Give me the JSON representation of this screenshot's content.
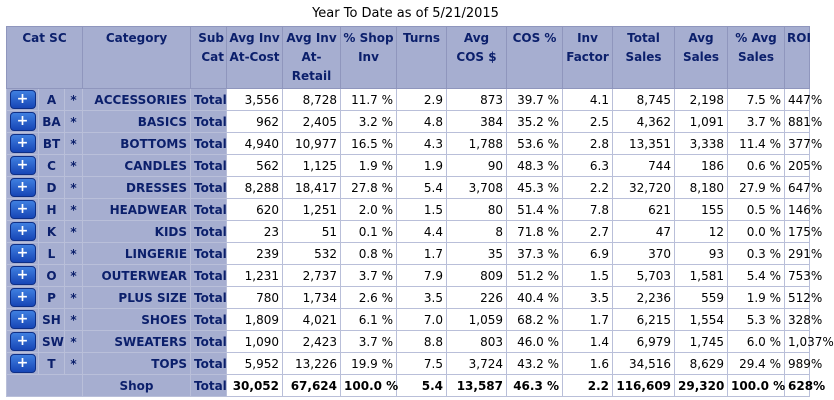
{
  "title": "Year To Date as of 5/21/2015",
  "headers": {
    "catsc": "Cat SC",
    "category": "Category",
    "subcat": "Sub Cat",
    "avginvcost": "Avg Inv At-Cost",
    "avginvretail": "Avg Inv At-Retail",
    "shopinv": "% Shop Inv",
    "turns": "Turns",
    "avgcos": "Avg COS $",
    "cospct": "COS %",
    "invfactor": "Inv Factor",
    "totalsales": "Total Sales",
    "avgsales": "Avg Sales",
    "pctavgsales": "% Avg Sales",
    "roi": "ROI"
  },
  "expand_label": "+",
  "rows": [
    {
      "cat": "A",
      "sc": "*",
      "category": "ACCESSORIES",
      "subcat": "Total",
      "avg_inv_cost": "3,556",
      "avg_inv_retail": "8,728",
      "shop_inv": "11.7 %",
      "turns": "2.9",
      "avg_cos": "873",
      "cos_pct": "39.7 %",
      "inv_factor": "4.1",
      "total_sales": "8,745",
      "avg_sales": "2,198",
      "pct_avg_sales": "7.5 %",
      "roi": "447%"
    },
    {
      "cat": "BA",
      "sc": "*",
      "category": "BASICS",
      "subcat": "Total",
      "avg_inv_cost": "962",
      "avg_inv_retail": "2,405",
      "shop_inv": "3.2 %",
      "turns": "4.8",
      "avg_cos": "384",
      "cos_pct": "35.2 %",
      "inv_factor": "2.5",
      "total_sales": "4,362",
      "avg_sales": "1,091",
      "pct_avg_sales": "3.7 %",
      "roi": "881%"
    },
    {
      "cat": "BT",
      "sc": "*",
      "category": "BOTTOMS",
      "subcat": "Total",
      "avg_inv_cost": "4,940",
      "avg_inv_retail": "10,977",
      "shop_inv": "16.5 %",
      "turns": "4.3",
      "avg_cos": "1,788",
      "cos_pct": "53.6 %",
      "inv_factor": "2.8",
      "total_sales": "13,351",
      "avg_sales": "3,338",
      "pct_avg_sales": "11.4 %",
      "roi": "377%"
    },
    {
      "cat": "C",
      "sc": "*",
      "category": "CANDLES",
      "subcat": "Total",
      "avg_inv_cost": "562",
      "avg_inv_retail": "1,125",
      "shop_inv": "1.9 %",
      "turns": "1.9",
      "avg_cos": "90",
      "cos_pct": "48.3 %",
      "inv_factor": "6.3",
      "total_sales": "744",
      "avg_sales": "186",
      "pct_avg_sales": "0.6 %",
      "roi": "205%"
    },
    {
      "cat": "D",
      "sc": "*",
      "category": "DRESSES",
      "subcat": "Total",
      "avg_inv_cost": "8,288",
      "avg_inv_retail": "18,417",
      "shop_inv": "27.8 %",
      "turns": "5.4",
      "avg_cos": "3,708",
      "cos_pct": "45.3 %",
      "inv_factor": "2.2",
      "total_sales": "32,720",
      "avg_sales": "8,180",
      "pct_avg_sales": "27.9 %",
      "roi": "647%"
    },
    {
      "cat": "H",
      "sc": "*",
      "category": "HEADWEAR",
      "subcat": "Total",
      "avg_inv_cost": "620",
      "avg_inv_retail": "1,251",
      "shop_inv": "2.0 %",
      "turns": "1.5",
      "avg_cos": "80",
      "cos_pct": "51.4 %",
      "inv_factor": "7.8",
      "total_sales": "621",
      "avg_sales": "155",
      "pct_avg_sales": "0.5 %",
      "roi": "146%"
    },
    {
      "cat": "K",
      "sc": "*",
      "category": "KIDS",
      "subcat": "Total",
      "avg_inv_cost": "23",
      "avg_inv_retail": "51",
      "shop_inv": "0.1 %",
      "turns": "4.4",
      "avg_cos": "8",
      "cos_pct": "71.8 %",
      "inv_factor": "2.7",
      "total_sales": "47",
      "avg_sales": "12",
      "pct_avg_sales": "0.0 %",
      "roi": "175%"
    },
    {
      "cat": "L",
      "sc": "*",
      "category": "LINGERIE",
      "subcat": "Total",
      "avg_inv_cost": "239",
      "avg_inv_retail": "532",
      "shop_inv": "0.8 %",
      "turns": "1.7",
      "avg_cos": "35",
      "cos_pct": "37.3 %",
      "inv_factor": "6.9",
      "total_sales": "370",
      "avg_sales": "93",
      "pct_avg_sales": "0.3 %",
      "roi": "291%"
    },
    {
      "cat": "O",
      "sc": "*",
      "category": "OUTERWEAR",
      "subcat": "Total",
      "avg_inv_cost": "1,231",
      "avg_inv_retail": "2,737",
      "shop_inv": "3.7 %",
      "turns": "7.9",
      "avg_cos": "809",
      "cos_pct": "51.2 %",
      "inv_factor": "1.5",
      "total_sales": "5,703",
      "avg_sales": "1,581",
      "pct_avg_sales": "5.4 %",
      "roi": "753%"
    },
    {
      "cat": "P",
      "sc": "*",
      "category": "PLUS SIZE",
      "subcat": "Total",
      "avg_inv_cost": "780",
      "avg_inv_retail": "1,734",
      "shop_inv": "2.6 %",
      "turns": "3.5",
      "avg_cos": "226",
      "cos_pct": "40.4 %",
      "inv_factor": "3.5",
      "total_sales": "2,236",
      "avg_sales": "559",
      "pct_avg_sales": "1.9 %",
      "roi": "512%"
    },
    {
      "cat": "SH",
      "sc": "*",
      "category": "SHOES",
      "subcat": "Total",
      "avg_inv_cost": "1,809",
      "avg_inv_retail": "4,021",
      "shop_inv": "6.1 %",
      "turns": "7.0",
      "avg_cos": "1,059",
      "cos_pct": "68.2 %",
      "inv_factor": "1.7",
      "total_sales": "6,215",
      "avg_sales": "1,554",
      "pct_avg_sales": "5.3 %",
      "roi": "328%"
    },
    {
      "cat": "SW",
      "sc": "*",
      "category": "SWEATERS",
      "subcat": "Total",
      "avg_inv_cost": "1,090",
      "avg_inv_retail": "2,423",
      "shop_inv": "3.7 %",
      "turns": "8.8",
      "avg_cos": "803",
      "cos_pct": "46.0 %",
      "inv_factor": "1.4",
      "total_sales": "6,979",
      "avg_sales": "1,745",
      "pct_avg_sales": "6.0 %",
      "roi": "1,037%"
    },
    {
      "cat": "T",
      "sc": "*",
      "category": "TOPS",
      "subcat": "Total",
      "avg_inv_cost": "5,952",
      "avg_inv_retail": "13,226",
      "shop_inv": "19.9 %",
      "turns": "7.5",
      "avg_cos": "3,724",
      "cos_pct": "43.2 %",
      "inv_factor": "1.6",
      "total_sales": "34,516",
      "avg_sales": "8,629",
      "pct_avg_sales": "29.4 %",
      "roi": "989%"
    }
  ],
  "total_row": {
    "category": "Shop",
    "subcat": "Total",
    "avg_inv_cost": "30,052",
    "avg_inv_retail": "67,624",
    "shop_inv": "100.0 %",
    "turns": "5.4",
    "avg_cos": "13,587",
    "cos_pct": "46.3 %",
    "inv_factor": "2.2",
    "total_sales": "116,609",
    "avg_sales": "29,320",
    "pct_avg_sales": "100.0 %",
    "roi": "628%"
  },
  "colors": {
    "header_bg": "#a6aed0",
    "header_text": "#0b1f6b",
    "button": "#1f5bd0"
  }
}
